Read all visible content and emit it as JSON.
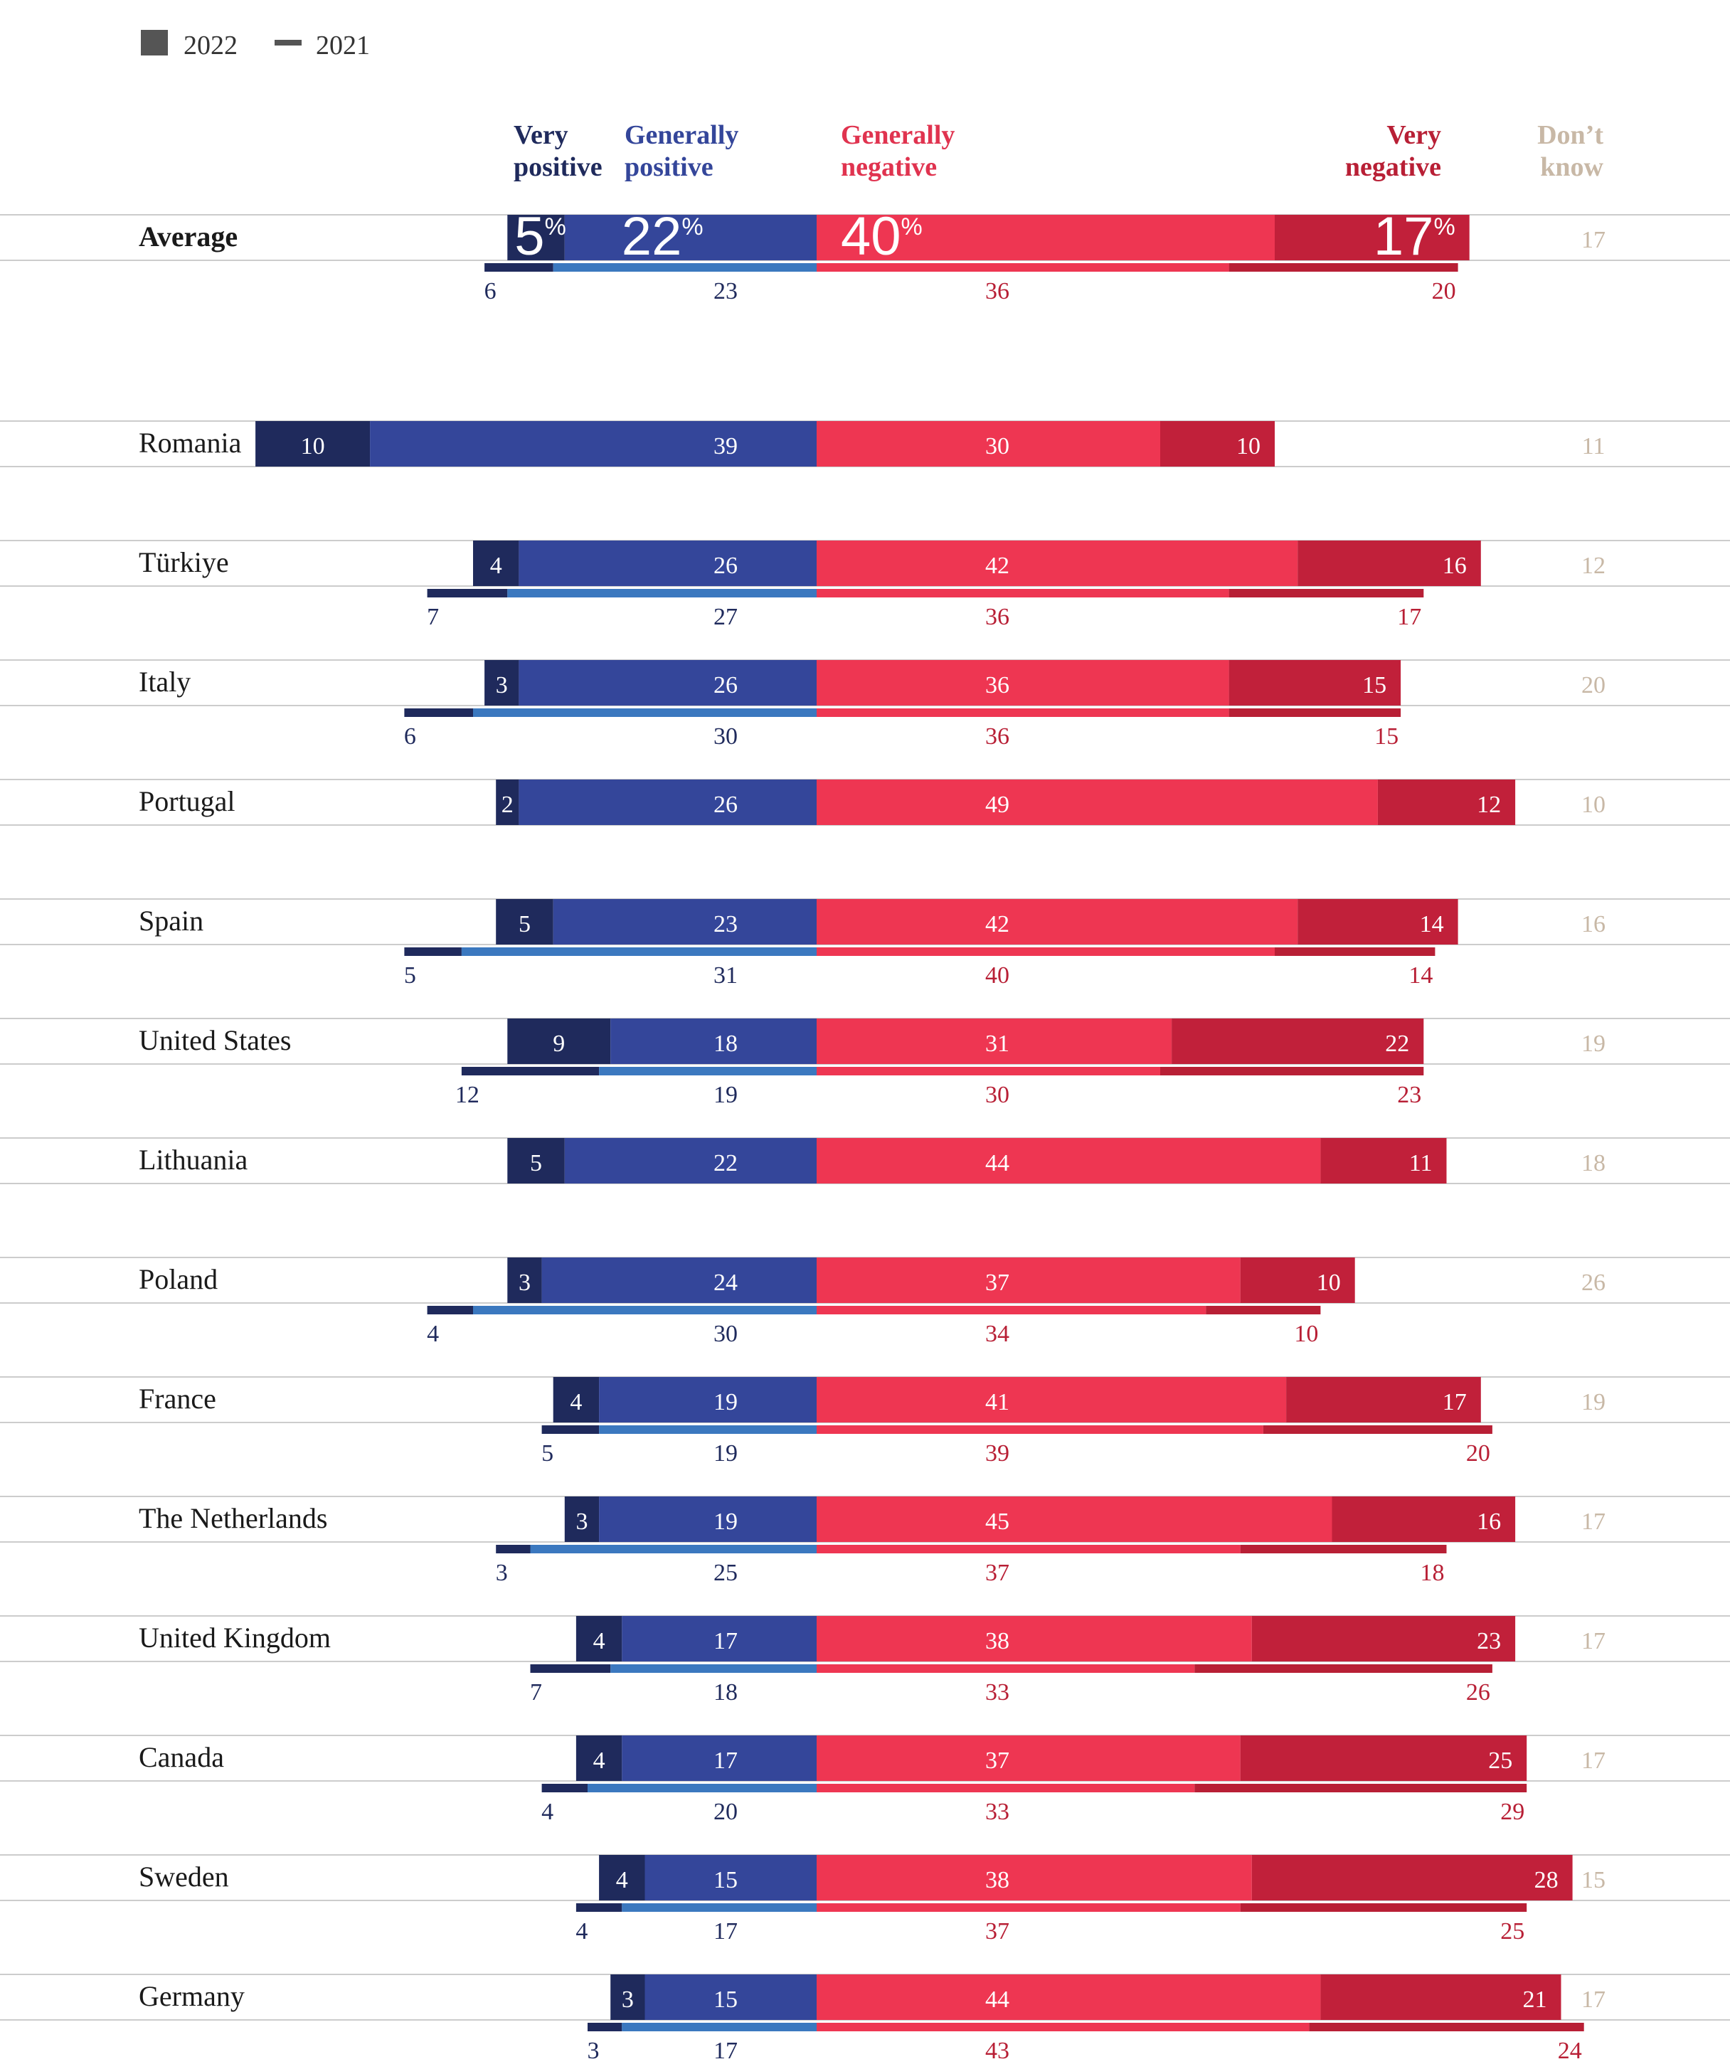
{
  "legend": {
    "items": [
      {
        "label": "2022",
        "shape": "square",
        "color": "#555555"
      },
      {
        "label": "2021",
        "shape": "line",
        "color": "#555555"
      }
    ]
  },
  "header_labels": [
    {
      "key": "very_positive",
      "lines": [
        "Very",
        "positive"
      ],
      "color": "#1f2a5c"
    },
    {
      "key": "generally_positive",
      "lines": [
        "Generally",
        "positive"
      ],
      "color": "#34469a"
    },
    {
      "key": "generally_negative",
      "lines": [
        "Generally",
        "negative"
      ],
      "color": "#e0334f"
    },
    {
      "key": "very_negative",
      "lines": [
        "Very",
        "negative"
      ],
      "color": "#b81f35"
    },
    {
      "key": "dont_know",
      "lines": [
        "Don’t",
        "know"
      ],
      "color": "#c8b8a6"
    }
  ],
  "colors": {
    "very_positive_2022": "#1f2a5c",
    "generally_positive_2022": "#34469a",
    "generally_negative_2022": "#ee3652",
    "very_negative_2022": "#c1203a",
    "very_positive_2021": "#1f2a5c",
    "generally_positive_2021": "#3b78bf",
    "generally_negative_2021": "#ee3652",
    "very_negative_2021": "#b81f35",
    "dont_know_text": "#c8b8a6",
    "gridline": "#cccccc"
  },
  "chart_data": {
    "type": "bar",
    "orientation": "horizontal",
    "stacking": "diverging",
    "categories": [
      "Average",
      "Romania",
      "Türkiye",
      "Italy",
      "Portugal",
      "Spain",
      "United States",
      "Lithuania",
      "Poland",
      "France",
      "The Netherlands",
      "United Kingdom",
      "Canada",
      "Sweden",
      "Germany"
    ],
    "series_2022": {
      "very_positive": [
        5,
        10,
        4,
        3,
        2,
        5,
        9,
        5,
        3,
        4,
        3,
        4,
        4,
        4,
        3
      ],
      "generally_positive": [
        22,
        39,
        26,
        26,
        26,
        23,
        18,
        22,
        24,
        19,
        19,
        17,
        17,
        15,
        15
      ],
      "generally_negative": [
        40,
        30,
        42,
        36,
        49,
        42,
        31,
        44,
        37,
        41,
        45,
        38,
        37,
        38,
        44
      ],
      "very_negative": [
        17,
        10,
        16,
        15,
        12,
        14,
        22,
        11,
        10,
        17,
        16,
        23,
        25,
        28,
        21
      ],
      "dont_know": [
        17,
        11,
        12,
        20,
        10,
        16,
        19,
        18,
        26,
        19,
        17,
        17,
        17,
        15,
        17
      ]
    },
    "series_2021": {
      "very_positive": [
        6,
        null,
        7,
        6,
        null,
        5,
        12,
        null,
        4,
        5,
        3,
        7,
        4,
        4,
        3
      ],
      "generally_positive": [
        23,
        null,
        27,
        30,
        null,
        31,
        19,
        null,
        30,
        19,
        25,
        18,
        20,
        17,
        17
      ],
      "generally_negative": [
        36,
        null,
        36,
        36,
        null,
        40,
        30,
        null,
        34,
        39,
        37,
        33,
        33,
        37,
        43
      ],
      "very_negative": [
        20,
        null,
        17,
        15,
        null,
        14,
        23,
        null,
        10,
        20,
        18,
        26,
        29,
        25,
        24
      ]
    },
    "average_value_suffix": "%"
  }
}
